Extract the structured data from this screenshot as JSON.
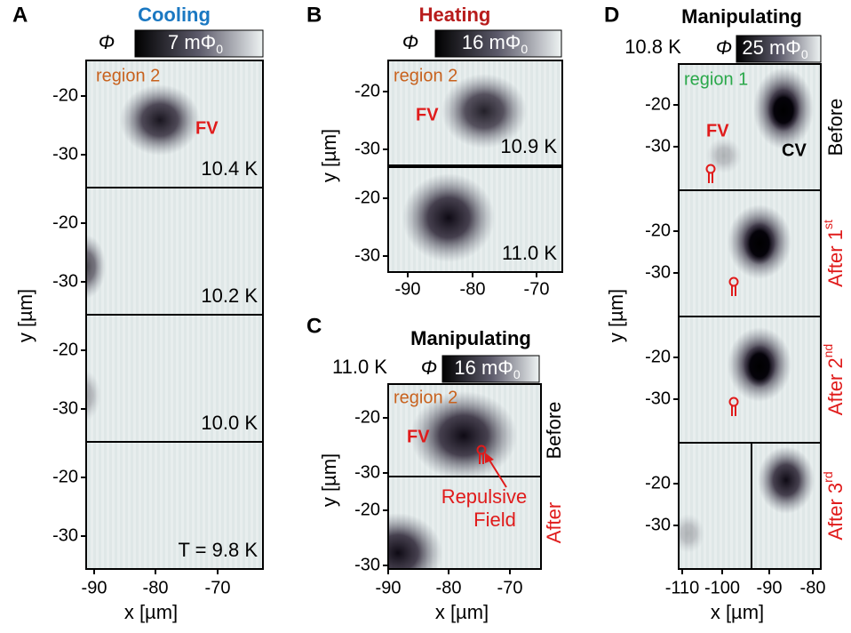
{
  "panels": [
    {
      "label": "A",
      "title": "Cooling",
      "colorbar": {
        "symbol": "Φ",
        "text": "7 mΦ",
        "subscript": "0"
      },
      "annotations": {
        "region": "region 2",
        "vortex": "FV"
      },
      "row_labels": [
        {
          "text": "10.4 K"
        },
        {
          "text": "10.2 K"
        },
        {
          "text": "10.0 K"
        },
        {
          "text": "T = 9.8 K"
        }
      ],
      "yticks": [
        -20,
        -30
      ],
      "xticks": [
        -90,
        -80,
        -70
      ],
      "xlabel": "x [µm]",
      "ylabel": "y [µm]"
    },
    {
      "label": "B",
      "title": "Heating",
      "colorbar": {
        "symbol": "Φ",
        "text": "16 mΦ",
        "subscript": "0"
      },
      "annotations": {
        "region": "region 2",
        "vortex": "FV"
      },
      "row_labels": [
        {
          "text": "10.9 K"
        },
        {
          "text": "11.0 K"
        }
      ],
      "yticks": [
        -20,
        -30
      ],
      "xticks": [
        -90,
        -80,
        -70
      ],
      "ylabel": "y [µm]"
    },
    {
      "label": "C",
      "title": "Manipulating",
      "temperature": "11.0 K",
      "colorbar": {
        "symbol": "Φ",
        "text": "16 mΦ",
        "subscript": "0"
      },
      "annotations": {
        "region": "region 2",
        "vortex": "FV",
        "field": [
          "Repulsive",
          "Field"
        ]
      },
      "row_labels": [
        {
          "text": "Before"
        },
        {
          "text": "After"
        }
      ],
      "yticks": [
        -20,
        -30
      ],
      "xticks": [
        -90,
        -80,
        -70
      ],
      "xlabel": "x [µm]",
      "ylabel": "y [µm]"
    },
    {
      "label": "D",
      "title": "Manipulating",
      "temperature": "10.8 K",
      "colorbar": {
        "symbol": "Φ",
        "text": "25 mΦ",
        "subscript": "0"
      },
      "annotations": {
        "region": "region 1",
        "vortex": "FV",
        "cv": "CV"
      },
      "row_labels": [
        {
          "text": "Before"
        },
        {
          "text": "After 1",
          "sup": "st"
        },
        {
          "text": "After 2",
          "sup": "nd"
        },
        {
          "text": "After 3",
          "sup": "rd"
        }
      ],
      "yticks": [
        -20,
        -30
      ],
      "xticks": [
        -110,
        -100,
        -90,
        -80
      ],
      "xlabel": "x [µm]",
      "ylabel": "y [µm]"
    }
  ]
}
